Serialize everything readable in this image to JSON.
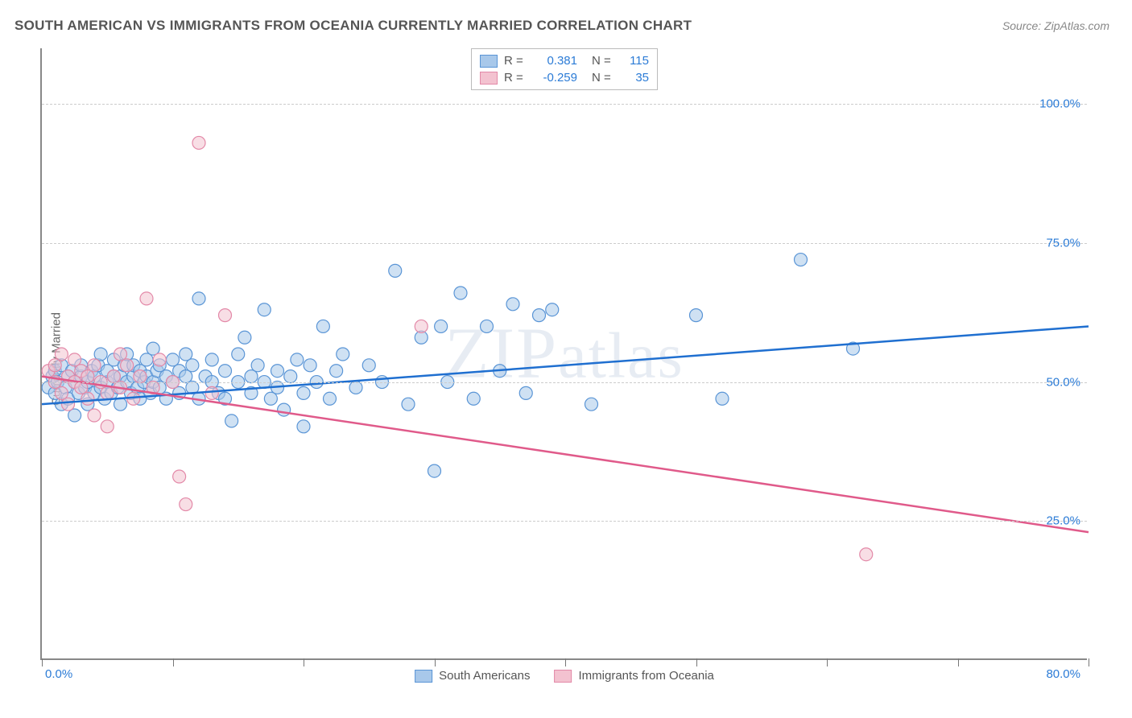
{
  "title": "SOUTH AMERICAN VS IMMIGRANTS FROM OCEANIA CURRENTLY MARRIED CORRELATION CHART",
  "source": "Source: ZipAtlas.com",
  "ylabel": "Currently Married",
  "watermark": "ZIPatlas",
  "chart": {
    "type": "scatter",
    "xlim": [
      0,
      80
    ],
    "ylim": [
      0,
      110
    ],
    "x_ticks": [
      0,
      10,
      20,
      30,
      40,
      50,
      60,
      70,
      80
    ],
    "x_tick_labels": {
      "0": "0.0%",
      "80": "80.0%"
    },
    "y_grid": [
      25,
      50,
      75,
      100
    ],
    "y_tick_labels": {
      "25": "25.0%",
      "50": "50.0%",
      "75": "75.0%",
      "100": "100.0%"
    },
    "background_color": "#ffffff",
    "grid_color": "#cccccc",
    "axis_color": "#888888",
    "tick_label_color": "#2b7bd6",
    "marker_radius": 8,
    "marker_opacity": 0.55,
    "line_width": 2.5,
    "series": [
      {
        "name": "South Americans",
        "color_fill": "#a8c8ea",
        "color_stroke": "#5a95d6",
        "line_color": "#1f6fd0",
        "R": "0.381",
        "N": "115",
        "regression": {
          "x1": 0,
          "y1": 46,
          "x2": 80,
          "y2": 60
        },
        "points": [
          [
            0.5,
            49
          ],
          [
            0.8,
            51
          ],
          [
            1,
            48
          ],
          [
            1,
            52
          ],
          [
            1.2,
            50
          ],
          [
            1.5,
            53
          ],
          [
            1.5,
            46
          ],
          [
            1.8,
            49
          ],
          [
            2,
            51
          ],
          [
            2,
            47
          ],
          [
            2.3,
            52
          ],
          [
            2.5,
            50
          ],
          [
            2.5,
            44
          ],
          [
            2.8,
            48
          ],
          [
            3,
            51
          ],
          [
            3,
            53
          ],
          [
            3.3,
            49
          ],
          [
            3.5,
            46
          ],
          [
            3.5,
            50
          ],
          [
            3.8,
            52
          ],
          [
            4,
            48
          ],
          [
            4,
            51
          ],
          [
            4.3,
            53
          ],
          [
            4.5,
            49
          ],
          [
            4.5,
            55
          ],
          [
            4.8,
            47
          ],
          [
            5,
            50
          ],
          [
            5,
            52
          ],
          [
            5.3,
            48
          ],
          [
            5.5,
            51
          ],
          [
            5.5,
            54
          ],
          [
            5.8,
            49
          ],
          [
            6,
            46
          ],
          [
            6,
            51
          ],
          [
            6.3,
            53
          ],
          [
            6.5,
            50
          ],
          [
            6.5,
            55
          ],
          [
            6.8,
            48
          ],
          [
            7,
            51
          ],
          [
            7,
            53
          ],
          [
            7.3,
            49
          ],
          [
            7.5,
            47
          ],
          [
            7.5,
            52
          ],
          [
            7.8,
            50
          ],
          [
            8,
            54
          ],
          [
            8,
            51
          ],
          [
            8.3,
            48
          ],
          [
            8.5,
            56
          ],
          [
            8.5,
            50
          ],
          [
            8.8,
            52
          ],
          [
            9,
            49
          ],
          [
            9,
            53
          ],
          [
            9.5,
            51
          ],
          [
            9.5,
            47
          ],
          [
            10,
            50
          ],
          [
            10,
            54
          ],
          [
            10.5,
            52
          ],
          [
            10.5,
            48
          ],
          [
            11,
            51
          ],
          [
            11,
            55
          ],
          [
            11.5,
            49
          ],
          [
            11.5,
            53
          ],
          [
            12,
            47
          ],
          [
            12,
            65
          ],
          [
            12.5,
            51
          ],
          [
            13,
            50
          ],
          [
            13,
            54
          ],
          [
            13.5,
            48
          ],
          [
            14,
            52
          ],
          [
            14,
            47
          ],
          [
            14.5,
            43
          ],
          [
            15,
            55
          ],
          [
            15,
            50
          ],
          [
            15.5,
            58
          ],
          [
            16,
            51
          ],
          [
            16,
            48
          ],
          [
            16.5,
            53
          ],
          [
            17,
            50
          ],
          [
            17,
            63
          ],
          [
            17.5,
            47
          ],
          [
            18,
            52
          ],
          [
            18,
            49
          ],
          [
            18.5,
            45
          ],
          [
            19,
            51
          ],
          [
            19.5,
            54
          ],
          [
            20,
            48
          ],
          [
            20,
            42
          ],
          [
            20.5,
            53
          ],
          [
            21,
            50
          ],
          [
            21.5,
            60
          ],
          [
            22,
            47
          ],
          [
            22.5,
            52
          ],
          [
            23,
            55
          ],
          [
            24,
            49
          ],
          [
            25,
            53
          ],
          [
            26,
            50
          ],
          [
            27,
            70
          ],
          [
            28,
            46
          ],
          [
            29,
            58
          ],
          [
            30,
            34
          ],
          [
            30.5,
            60
          ],
          [
            31,
            50
          ],
          [
            32,
            66
          ],
          [
            33,
            47
          ],
          [
            34,
            60
          ],
          [
            35,
            52
          ],
          [
            36,
            64
          ],
          [
            37,
            48
          ],
          [
            38,
            62
          ],
          [
            39,
            63
          ],
          [
            42,
            46
          ],
          [
            50,
            62
          ],
          [
            52,
            47
          ],
          [
            58,
            72
          ],
          [
            62,
            56
          ]
        ]
      },
      {
        "name": "Immigrants from Oceania",
        "color_fill": "#f3c2d0",
        "color_stroke": "#e389a8",
        "line_color": "#e05a8a",
        "R": "-0.259",
        "N": "35",
        "regression": {
          "x1": 0,
          "y1": 51,
          "x2": 80,
          "y2": 23
        },
        "points": [
          [
            0.5,
            52
          ],
          [
            1,
            50
          ],
          [
            1,
            53
          ],
          [
            1.5,
            48
          ],
          [
            1.5,
            55
          ],
          [
            2,
            51
          ],
          [
            2,
            46
          ],
          [
            2.5,
            50
          ],
          [
            2.5,
            54
          ],
          [
            3,
            49
          ],
          [
            3,
            52
          ],
          [
            3.5,
            47
          ],
          [
            3.5,
            51
          ],
          [
            4,
            44
          ],
          [
            4,
            53
          ],
          [
            4.5,
            50
          ],
          [
            5,
            48
          ],
          [
            5,
            42
          ],
          [
            5.5,
            51
          ],
          [
            6,
            55
          ],
          [
            6,
            49
          ],
          [
            6.5,
            53
          ],
          [
            7,
            47
          ],
          [
            7.5,
            51
          ],
          [
            8,
            65
          ],
          [
            8.5,
            49
          ],
          [
            9,
            54
          ],
          [
            10,
            50
          ],
          [
            10.5,
            33
          ],
          [
            11,
            28
          ],
          [
            12,
            93
          ],
          [
            13,
            48
          ],
          [
            14,
            62
          ],
          [
            29,
            60
          ],
          [
            63,
            19
          ]
        ]
      }
    ]
  },
  "legend_bottom": [
    {
      "label": "South Americans",
      "fill": "#a8c8ea",
      "stroke": "#5a95d6"
    },
    {
      "label": "Immigrants from Oceania",
      "fill": "#f3c2d0",
      "stroke": "#e389a8"
    }
  ]
}
